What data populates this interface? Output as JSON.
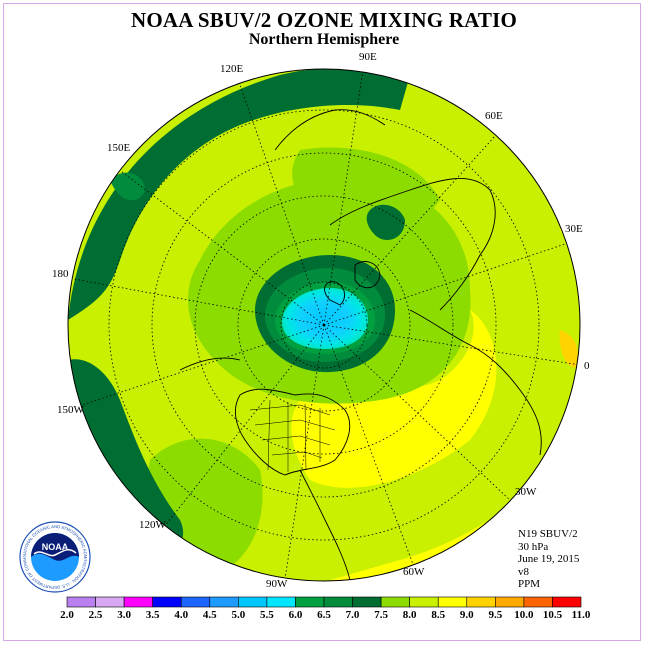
{
  "title": "NOAA SBUV/2 OZONE MIXING RATIO",
  "subtitle": "Northern Hemisphere",
  "longitude_labels": {
    "lon_90e": "90E",
    "lon_120e": "120E",
    "lon_60e": "60E",
    "lon_150e": "150E",
    "lon_30e": "30E",
    "lon_180": "180",
    "lon_0": "0",
    "lon_150w": "150W",
    "lon_30w": "30W",
    "lon_120w": "120W",
    "lon_60w": "60W",
    "lon_90w": "90W"
  },
  "info": {
    "satellite": "N19 SBUV/2",
    "level": "30 hPa",
    "date": "June 19, 2015",
    "version": "v8",
    "units": "PPM"
  },
  "logo": {
    "text": "NOAA",
    "ring_text": "NATIONAL OCEANIC AND ATMOSPHERIC ADMINISTRATION · U.S. DEPARTMENT OF COMMERCE"
  },
  "colorbar": {
    "ticks": [
      "2.0",
      "2.5",
      "3.0",
      "3.5",
      "4.0",
      "4.5",
      "5.0",
      "5.5",
      "6.0",
      "6.5",
      "7.0",
      "7.5",
      "8.0",
      "8.5",
      "9.0",
      "9.5",
      "10.0",
      "10.5",
      "11.0"
    ],
    "colors": [
      "#b981f0",
      "#d8a8f5",
      "#ff00ff",
      "#0000ff",
      "#1e64ff",
      "#1e9bff",
      "#00c8ff",
      "#00e6ff",
      "#00a040",
      "#008c3c",
      "#006e32",
      "#8cdc00",
      "#c8f000",
      "#ffff00",
      "#ffd200",
      "#ffaa00",
      "#ff6400",
      "#ff0000",
      "#a0522d"
    ]
  }
}
